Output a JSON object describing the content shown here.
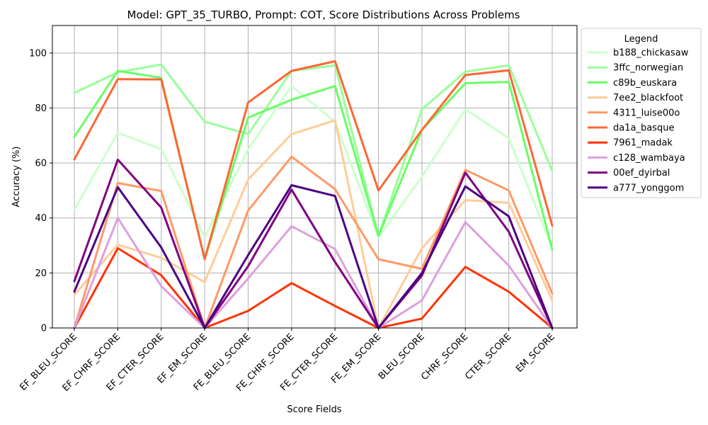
{
  "chart_data": {
    "type": "line",
    "title": "Model: GPT_35_TURBO, Prompt: COT, Score Distributions Across Problems",
    "xlabel": "Score Fields",
    "ylabel": "Accuracy (%)",
    "ylim": [
      0,
      110
    ],
    "yticks": [
      0,
      20,
      40,
      60,
      80,
      100
    ],
    "grid": true,
    "legend_title": "Legend",
    "legend_position": "outside-right",
    "categories": [
      "EF_BLEU_SCORE",
      "EF_CHRF_SCORE",
      "EF_CTER_SCORE",
      "EF_EM_SCORE",
      "FE_BLEU_SCORE",
      "FE_CHRF_SCORE",
      "FE_CTER_SCORE",
      "FE_EM_SCORE",
      "BLEU_SCORE",
      "CHRF_SCORE",
      "CTER_SCORE",
      "EM_SCORE"
    ],
    "series": [
      {
        "name": "b188_chickasaw",
        "color": "#ccffcc",
        "values": [
          43,
          71,
          65,
          33,
          65,
          88,
          75,
          33,
          55,
          79.5,
          69,
          29
        ]
      },
      {
        "name": "3ffc_norwegian",
        "color": "#99ff99",
        "values": [
          85.5,
          93,
          95.8,
          75,
          70.5,
          93.5,
          95.5,
          33.5,
          79.5,
          93.2,
          95.5,
          57
        ]
      },
      {
        "name": "c89b_euskara",
        "color": "#66ff66",
        "values": [
          69.5,
          93.5,
          91,
          25,
          76.5,
          83,
          88,
          33.5,
          72,
          89,
          89.5,
          28.5
        ]
      },
      {
        "name": "7ee2_blackfoot",
        "color": "#ffcc99",
        "values": [
          12,
          30.3,
          25.5,
          16.7,
          54,
          70.5,
          75.5,
          0,
          29,
          46.5,
          45.5,
          10
        ]
      },
      {
        "name": "4311_luise00o",
        "color": "#ff9966",
        "values": [
          0,
          52.7,
          49.8,
          0,
          42.7,
          62.3,
          50.5,
          25,
          21.5,
          57.5,
          50,
          12.5
        ]
      },
      {
        "name": "da1a_basque",
        "color": "#ff6633",
        "values": [
          61.3,
          90.5,
          90.4,
          25,
          82,
          93.5,
          97,
          50,
          72,
          92,
          93.7,
          37.2
        ]
      },
      {
        "name": "7961_madak",
        "color": "#ff3300",
        "values": [
          0,
          29,
          19.2,
          0,
          6.2,
          16.3,
          8,
          0,
          3.4,
          22.2,
          13.2,
          0
        ]
      },
      {
        "name": "c128_wambaya",
        "color": "#dda0dd",
        "values": [
          0,
          40,
          15.2,
          0,
          18,
          37,
          28.7,
          0,
          10,
          38.5,
          22.7,
          0
        ]
      },
      {
        "name": "00ef_dyirbal",
        "color": "#800080",
        "values": [
          17,
          61.2,
          43.8,
          0,
          22.5,
          50.3,
          24,
          0,
          19,
          56.5,
          35,
          0
        ]
      },
      {
        "name": "a777_yonggom",
        "color": "#4b0082",
        "values": [
          13.2,
          51.2,
          29.3,
          0,
          26.5,
          51.9,
          48,
          0,
          20,
          51.5,
          40.6,
          0
        ]
      }
    ]
  }
}
